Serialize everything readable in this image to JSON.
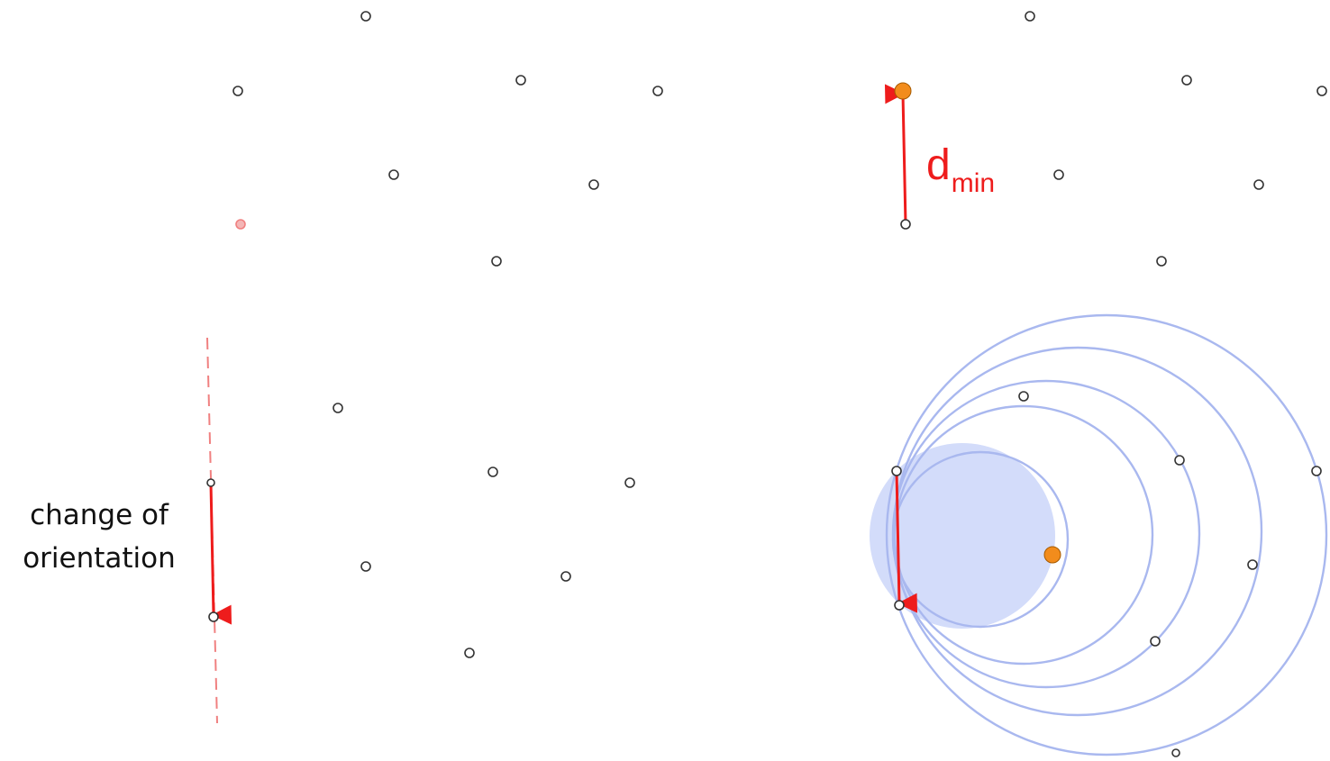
{
  "labels": {
    "dmin_main": "d",
    "dmin_sub": "min",
    "orientation_line1": "change of",
    "orientation_line2": "orientation"
  },
  "colors": {
    "arrow": "#ee1c1c",
    "dashed": "#f08080",
    "circle_stroke": "#a9b8ef",
    "disk_fill": "#d3dcfa",
    "highlight_point": "#f28c1c",
    "point_stroke": "#333333",
    "marked_point": "#f08080"
  },
  "point_sets": {
    "top_left_points": 9,
    "top_right_points": 8,
    "bottom_left_points": 9,
    "bottom_right_points": 10
  },
  "icons": [
    "arrow-dmin-icon",
    "arrow-orientation-icon",
    "dashed-orientation-line-icon"
  ]
}
